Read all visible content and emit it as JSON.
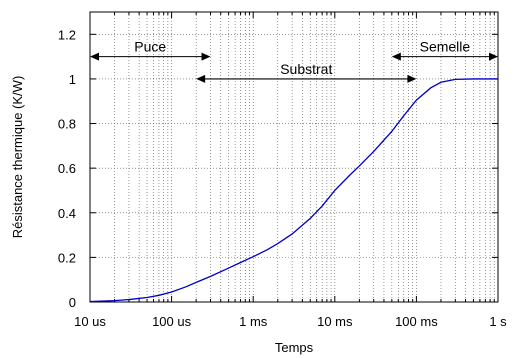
{
  "chart_data": {
    "type": "line",
    "xlabel": "Temps",
    "ylabel": "Résistance thermique (K/W)",
    "x_scale": "log",
    "xlim": [
      "10 us",
      "1 s"
    ],
    "xlim_seconds": [
      1e-05,
      1
    ],
    "ylim": [
      0,
      1.3
    ],
    "grid": true,
    "x_ticks": [
      {
        "value": 1e-05,
        "label": "10 us"
      },
      {
        "value": 0.0001,
        "label": "100 us"
      },
      {
        "value": 0.001,
        "label": "1 ms"
      },
      {
        "value": 0.01,
        "label": "10 ms"
      },
      {
        "value": 0.1,
        "label": "100 ms"
      },
      {
        "value": 1,
        "label": "1 s"
      }
    ],
    "y_ticks": [
      {
        "value": 0,
        "label": "0"
      },
      {
        "value": 0.2,
        "label": "0.2"
      },
      {
        "value": 0.4,
        "label": "0.4"
      },
      {
        "value": 0.6,
        "label": "0.6"
      },
      {
        "value": 0.8,
        "label": "0.8"
      },
      {
        "value": 1,
        "label": "1"
      },
      {
        "value": 1.2,
        "label": "1.2"
      }
    ],
    "series": [
      {
        "color": "#0000cc",
        "x": [
          1e-05,
          2e-05,
          3e-05,
          5e-05,
          7e-05,
          0.0001,
          0.00015,
          0.0002,
          0.0003,
          0.0005,
          0.0007,
          0.001,
          0.0015,
          0.002,
          0.003,
          0.005,
          0.007,
          0.01,
          0.015,
          0.02,
          0.03,
          0.05,
          0.07,
          0.1,
          0.15,
          0.2,
          0.3,
          0.5,
          0.7,
          1
        ],
        "y": [
          0.002,
          0.006,
          0.011,
          0.02,
          0.03,
          0.045,
          0.068,
          0.088,
          0.115,
          0.152,
          0.177,
          0.203,
          0.235,
          0.262,
          0.305,
          0.375,
          0.43,
          0.5,
          0.566,
          0.61,
          0.675,
          0.765,
          0.835,
          0.905,
          0.96,
          0.985,
          0.998,
          1.0,
          1.0,
          1.0
        ]
      }
    ],
    "annotations": [
      {
        "text": "Puce",
        "from": 1e-05,
        "to": 0.0003,
        "y": 1.1
      },
      {
        "text": "Substrat",
        "from": 0.0002,
        "to": 0.1,
        "y": 1.0
      },
      {
        "text": "Semelle",
        "from": 0.05,
        "to": 1,
        "y": 1.1
      }
    ]
  }
}
